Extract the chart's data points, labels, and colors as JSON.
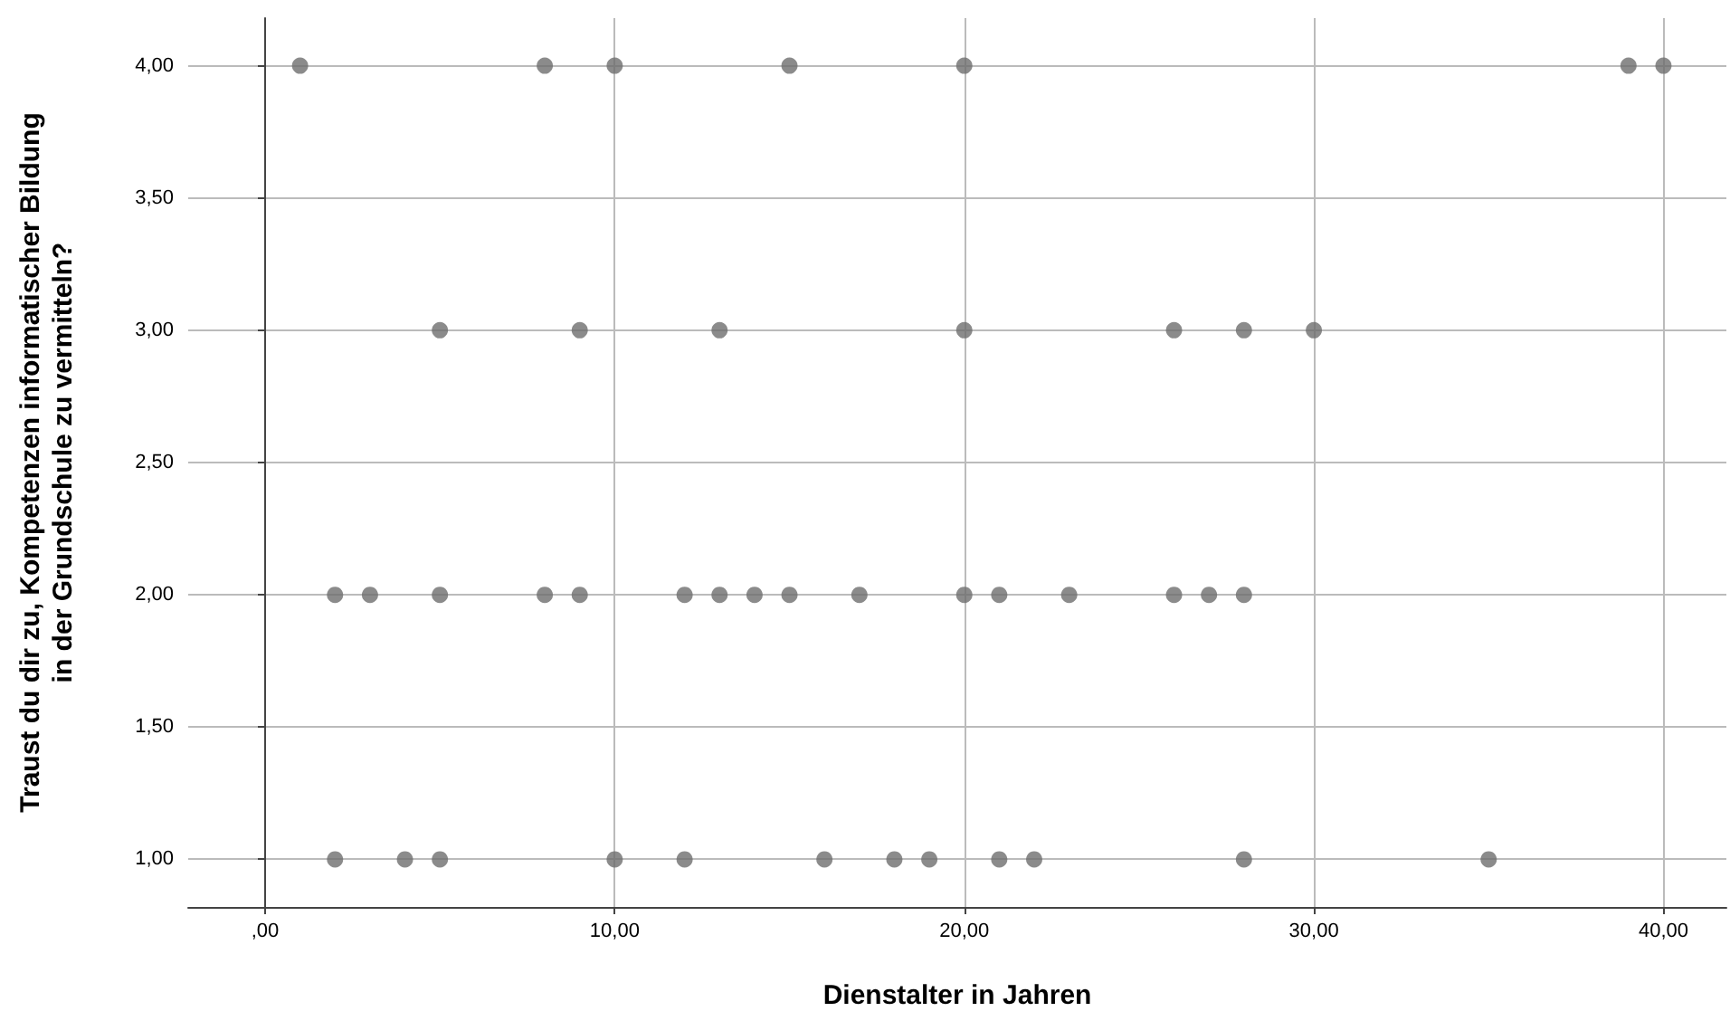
{
  "chart_data": {
    "type": "scatter",
    "xlabel": "Dienstalter in Jahren",
    "ylabel": "Traust du dir zu, Kompetenzen informatischer Bildung\nin der Grundschule zu vermitteln?",
    "x": [
      1,
      8,
      10,
      15,
      20,
      39,
      40,
      5,
      9,
      13,
      20,
      26,
      28,
      30,
      2,
      3,
      5,
      8,
      9,
      12,
      13,
      14,
      15,
      17,
      20,
      21,
      23,
      26,
      27,
      28,
      2,
      4,
      5,
      10,
      12,
      16,
      18,
      19,
      21,
      22,
      28,
      35
    ],
    "values": [
      4,
      4,
      4,
      4,
      4,
      4,
      4,
      3,
      3,
      3,
      3,
      3,
      3,
      3,
      2,
      2,
      2,
      2,
      2,
      2,
      2,
      2,
      2,
      2,
      2,
      2,
      2,
      2,
      2,
      2,
      1,
      1,
      1,
      1,
      1,
      1,
      1,
      1,
      1,
      1,
      1,
      1
    ],
    "color": "#6e6e6e",
    "marker": "circle",
    "grid": true,
    "xlim": [
      -2.2,
      41.8
    ],
    "xticks": [
      {
        "value": 0,
        "label": ",00"
      },
      {
        "value": 10,
        "label": "10,00"
      },
      {
        "value": 20,
        "label": "20,00"
      },
      {
        "value": 30,
        "label": "30,00"
      },
      {
        "value": 40,
        "label": "40,00"
      }
    ],
    "ylim": [
      0.82,
      4.18
    ],
    "yticks": [
      {
        "value": 1,
        "label": "1,00"
      },
      {
        "value": 1.5,
        "label": "1,50"
      },
      {
        "value": 2,
        "label": "2,00"
      },
      {
        "value": 2.5,
        "label": "2,50"
      },
      {
        "value": 3,
        "label": "3,00"
      },
      {
        "value": 3.5,
        "label": "3,50"
      },
      {
        "value": 4,
        "label": "4,00"
      }
    ]
  }
}
